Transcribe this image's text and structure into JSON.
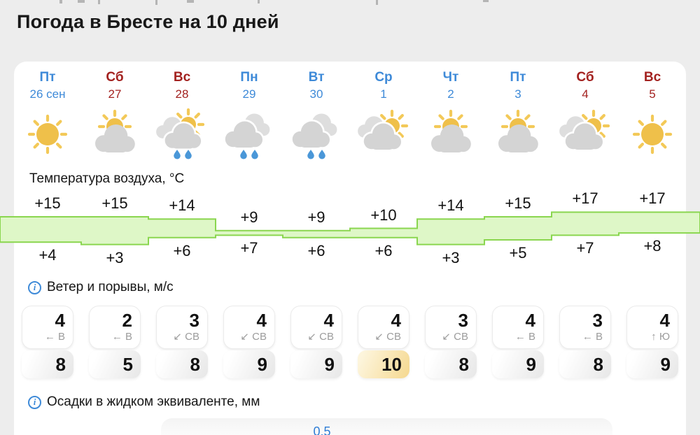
{
  "page": {
    "title": "Погода в Бресте на 10 дней",
    "background": "#ededed",
    "accent_blue": "#3e8ad8",
    "accent_red": "#a32220"
  },
  "forecast": {
    "days": [
      {
        "weekday": "Пт",
        "date": "26 сен",
        "color": "blue",
        "icon": "sun-icon"
      },
      {
        "weekday": "Сб",
        "date": "27",
        "color": "red",
        "icon": "sun-cloud-icon"
      },
      {
        "weekday": "Вс",
        "date": "28",
        "color": "red",
        "icon": "sun-clouds-rain-icon"
      },
      {
        "weekday": "Пн",
        "date": "29",
        "color": "blue",
        "icon": "clouds-rain-icon"
      },
      {
        "weekday": "Вт",
        "date": "30",
        "color": "blue",
        "icon": "clouds-rain-icon"
      },
      {
        "weekday": "Ср",
        "date": "1",
        "color": "blue",
        "icon": "clouds-sun-icon"
      },
      {
        "weekday": "Чт",
        "date": "2",
        "color": "blue",
        "icon": "sun-cloud-icon"
      },
      {
        "weekday": "Пт",
        "date": "3",
        "color": "blue",
        "icon": "sun-cloud-icon"
      },
      {
        "weekday": "Сб",
        "date": "4",
        "color": "red",
        "icon": "clouds-sun-icon"
      },
      {
        "weekday": "Вс",
        "date": "5",
        "color": "red",
        "icon": "sun-icon"
      }
    ]
  },
  "temperature": {
    "label": "Температура воздуха, °C",
    "chart_data": {
      "type": "area",
      "categories": [
        "Пт 26",
        "Сб 27",
        "Вс 28",
        "Пн 29",
        "Вт 30",
        "Ср 1",
        "Чт 2",
        "Пт 3",
        "Сб 4",
        "Вс 5"
      ],
      "series": [
        {
          "name": "max",
          "values": [
            15,
            15,
            14,
            9,
            9,
            10,
            14,
            15,
            17,
            17
          ]
        },
        {
          "name": "min",
          "values": [
            4,
            3,
            6,
            7,
            6,
            6,
            3,
            5,
            7,
            8
          ]
        }
      ],
      "band_fill": "#def7c7",
      "band_stroke": "#8ad64f"
    },
    "max_labels": [
      "+15",
      "+15",
      "+14",
      "+9",
      "+9",
      "+10",
      "+14",
      "+15",
      "+17",
      "+17"
    ],
    "min_labels": [
      "+4",
      "+3",
      "+6",
      "+7",
      "+6",
      "+6",
      "+3",
      "+5",
      "+7",
      "+8"
    ]
  },
  "wind": {
    "label": "Ветер и порывы, м/с",
    "cells": [
      {
        "speed": "4",
        "arrow": "←",
        "direction": "В",
        "gust": "8",
        "highlight": false
      },
      {
        "speed": "2",
        "arrow": "←",
        "direction": "В",
        "gust": "5",
        "highlight": false
      },
      {
        "speed": "3",
        "arrow": "↙",
        "direction": "СВ",
        "gust": "8",
        "highlight": false
      },
      {
        "speed": "4",
        "arrow": "↙",
        "direction": "СВ",
        "gust": "9",
        "highlight": false
      },
      {
        "speed": "4",
        "arrow": "↙",
        "direction": "СВ",
        "gust": "9",
        "highlight": false
      },
      {
        "speed": "4",
        "arrow": "↙",
        "direction": "СВ",
        "gust": "10",
        "highlight": true
      },
      {
        "speed": "3",
        "arrow": "↙",
        "direction": "СВ",
        "gust": "8",
        "highlight": false
      },
      {
        "speed": "4",
        "arrow": "←",
        "direction": "В",
        "gust": "9",
        "highlight": false
      },
      {
        "speed": "3",
        "arrow": "←",
        "direction": "В",
        "gust": "8",
        "highlight": false
      },
      {
        "speed": "4",
        "arrow": "↑",
        "direction": "Ю",
        "gust": "9",
        "highlight": false
      }
    ]
  },
  "precipitation": {
    "label": "Осадки в жидком эквиваленте, мм",
    "partial_value": "0.5"
  },
  "icon_colors": {
    "sun": "#efc04a",
    "ray": "#f3c958",
    "cloud_back": "#dedede",
    "cloud_front": "#d4d4d4",
    "raindrop": "#4a97d8"
  }
}
